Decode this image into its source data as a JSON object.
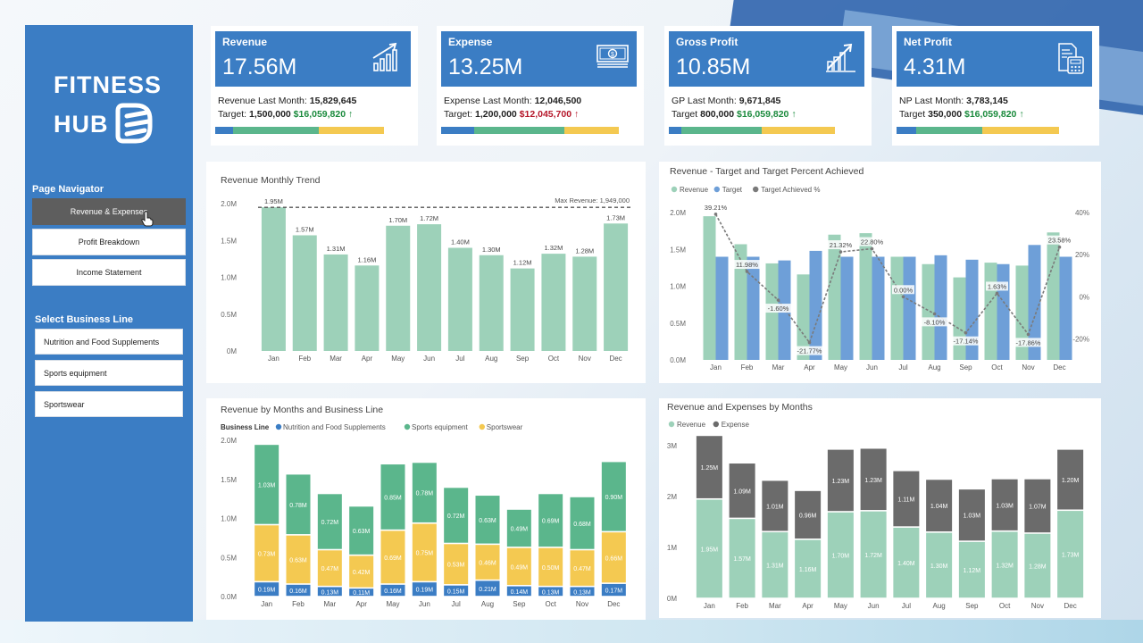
{
  "sidebar": {
    "logo_line1": "FITNESS",
    "logo_line2": "HUB",
    "navigator_title": "Page Navigator",
    "nav": [
      "Revenue & Expenses",
      "Profit Breakdown",
      "Income Statement"
    ],
    "business_title": "Select Business Line",
    "lines": [
      "Nutrition and Food Supplements",
      "Sports equipment",
      "Sportswear"
    ]
  },
  "kpis": [
    {
      "title": "Revenue",
      "value": "17.56M",
      "last_label": "Revenue Last Month:",
      "last_value": "15,829,645",
      "target_label": "Target:",
      "target_value": "1,500,000",
      "target_amount": "$16,059,820",
      "arrow": "↑",
      "trend": "up",
      "icon": "growth-chart-icon"
    },
    {
      "title": "Expense",
      "value": "13.25M",
      "last_label": "Expense Last Month:",
      "last_value": "12,046,500",
      "target_label": "Target:",
      "target_value": "1,200,000",
      "target_amount": "$12,045,700",
      "arrow": "↑",
      "trend": "down",
      "icon": "money-icon"
    },
    {
      "title": "Gross Profit",
      "value": "10.85M",
      "last_label": "GP Last Month:",
      "last_value": "9,671,845",
      "target_label": "Target",
      "target_value": "800,000",
      "target_amount": "$16,059,820",
      "arrow": "↑",
      "trend": "up",
      "icon": "growth-arrow-icon"
    },
    {
      "title": "Net Profit",
      "value": "4.31M",
      "last_label": "NP Last Month:",
      "last_value": "3,783,145",
      "target_label": "Target",
      "target_value": "350,000",
      "target_amount": "$16,059,820",
      "arrow": "↑",
      "trend": "up",
      "icon": "calculator-icon"
    }
  ],
  "colors": {
    "revenue": "#9dd1b9",
    "target": "#6e9fd8",
    "pct_line": "#7a7a7a",
    "nutrition": "#3b7dc4",
    "equipment": "#5bb68c",
    "sportswear": "#f4c951",
    "expense": "#6b6b6b",
    "kpi_head": "#3b7dc4",
    "sidebar": "#3b7dc4"
  },
  "chart_data": [
    {
      "type": "bar",
      "title": "Revenue Monthly Trend",
      "categories": [
        "Jan",
        "Feb",
        "Mar",
        "Apr",
        "May",
        "Jun",
        "Jul",
        "Aug",
        "Sep",
        "Oct",
        "Nov",
        "Dec"
      ],
      "values": [
        1.95,
        1.57,
        1.31,
        1.16,
        1.7,
        1.72,
        1.4,
        1.3,
        1.12,
        1.32,
        1.28,
        1.73
      ],
      "value_labels": [
        "1.95M",
        "1.57M",
        "1.31M",
        "1.16M",
        "1.70M",
        "1.72M",
        "1.40M",
        "1.30M",
        "1.12M",
        "1.32M",
        "1.28M",
        "1.73M"
      ],
      "yticks": [
        "0M",
        "0.5M",
        "1.0M",
        "1.5M",
        "2.0M"
      ],
      "ylim": [
        0,
        2.0
      ],
      "reference_line": {
        "value": 1.949,
        "label": "Max Revenue: 1,949,000"
      }
    },
    {
      "type": "bar",
      "title": "Revenue - Target and Target Percent Achieved",
      "legend": [
        "Revenue",
        "Target",
        "Target Achieved %"
      ],
      "categories": [
        "Jan",
        "Feb",
        "Mar",
        "Apr",
        "May",
        "Jun",
        "Jul",
        "Aug",
        "Sep",
        "Oct",
        "Nov",
        "Dec"
      ],
      "series": [
        {
          "name": "Revenue",
          "values": [
            1.95,
            1.57,
            1.31,
            1.16,
            1.7,
            1.72,
            1.4,
            1.3,
            1.12,
            1.32,
            1.28,
            1.73
          ]
        },
        {
          "name": "Target",
          "values": [
            1.4,
            1.4,
            1.35,
            1.48,
            1.4,
            1.4,
            1.4,
            1.42,
            1.36,
            1.3,
            1.56,
            1.4
          ]
        },
        {
          "name": "Target Achieved %",
          "values": [
            39.21,
            11.98,
            -1.6,
            -21.77,
            21.32,
            22.8,
            0.0,
            -8.1,
            -17.14,
            1.63,
            -17.86,
            23.58
          ],
          "labels": [
            "39.21%",
            "11.98%",
            "-1.60%",
            "-21.77%",
            "21.32%",
            "22.80%",
            "0.00%",
            "-8.10%",
            "-17.14%",
            "1.63%",
            "-17.86%",
            "23.58%"
          ]
        }
      ],
      "yticks": [
        "0.0M",
        "0.5M",
        "1.0M",
        "1.5M",
        "2.0M"
      ],
      "ylim": [
        0,
        2.0
      ],
      "y2ticks": [
        "-20%",
        "0%",
        "20%",
        "40%"
      ],
      "y2lim": [
        -30,
        40
      ]
    },
    {
      "type": "bar",
      "title": "Revenue by Months and Business Line",
      "legend_title": "Business Line",
      "legend": [
        "Nutrition and Food Supplements",
        "Sports equipment",
        "Sportswear"
      ],
      "categories": [
        "Jan",
        "Feb",
        "Mar",
        "Apr",
        "May",
        "Jun",
        "Jul",
        "Aug",
        "Sep",
        "Oct",
        "Nov",
        "Dec"
      ],
      "series": [
        {
          "name": "Nutrition and Food Supplements",
          "values": [
            0.19,
            0.16,
            0.13,
            0.11,
            0.16,
            0.19,
            0.15,
            0.21,
            0.14,
            0.13,
            0.13,
            0.17
          ],
          "labels": [
            "0.19M",
            "0.16M",
            "0.13M",
            "0.11M",
            "0.16M",
            "0.19M",
            "0.15M",
            "0.21M",
            "0.14M",
            "0.13M",
            "0.13M",
            "0.17M"
          ]
        },
        {
          "name": "Sportswear",
          "values": [
            0.73,
            0.63,
            0.47,
            0.42,
            0.69,
            0.75,
            0.53,
            0.46,
            0.49,
            0.5,
            0.47,
            0.66
          ],
          "labels": [
            "0.73M",
            "0.63M",
            "0.47M",
            "0.42M",
            "0.69M",
            "0.75M",
            "0.53M",
            "0.46M",
            "0.49M",
            "0.50M",
            "0.47M",
            "0.66M"
          ]
        },
        {
          "name": "Sports equipment",
          "values": [
            1.03,
            0.78,
            0.72,
            0.63,
            0.85,
            0.78,
            0.72,
            0.63,
            0.49,
            0.69,
            0.68,
            0.9
          ],
          "labels": [
            "1.03M",
            "0.78M",
            "0.72M",
            "0.63M",
            "0.85M",
            "0.78M",
            "0.72M",
            "0.63M",
            "0.49M",
            "0.69M",
            "0.68M",
            "0.90M"
          ]
        }
      ],
      "stack_order_note": "",
      "yticks": [
        "0.0M",
        "0.5M",
        "1.0M",
        "1.5M",
        "2.0M"
      ],
      "ylim": [
        0,
        2.0
      ]
    },
    {
      "type": "bar",
      "title": "Revenue and Expenses by Months",
      "legend": [
        "Revenue",
        "Expense"
      ],
      "categories": [
        "Jan",
        "Feb",
        "Mar",
        "Apr",
        "May",
        "Jun",
        "Jul",
        "Aug",
        "Sep",
        "Oct",
        "Nov",
        "Dec"
      ],
      "series": [
        {
          "name": "Revenue",
          "values": [
            1.95,
            1.57,
            1.31,
            1.16,
            1.7,
            1.72,
            1.4,
            1.3,
            1.12,
            1.32,
            1.28,
            1.73
          ],
          "labels": [
            "1.95M",
            "1.57M",
            "1.31M",
            "1.16M",
            "1.70M",
            "1.72M",
            "1.40M",
            "1.30M",
            "1.12M",
            "1.32M",
            "1.28M",
            "1.73M"
          ]
        },
        {
          "name": "Expense",
          "values": [
            1.25,
            1.09,
            1.01,
            0.96,
            1.23,
            1.23,
            1.11,
            1.04,
            1.03,
            1.03,
            1.07,
            1.2
          ],
          "labels": [
            "1.25M",
            "1.09M",
            "1.01M",
            "0.96M",
            "1.23M",
            "1.23M",
            "1.11M",
            "1.04M",
            "1.03M",
            "1.03M",
            "1.07M",
            "1.20M"
          ]
        }
      ],
      "yticks": [
        "0M",
        "1M",
        "2M",
        "3M"
      ],
      "ylim": [
        0,
        3.4
      ]
    }
  ]
}
